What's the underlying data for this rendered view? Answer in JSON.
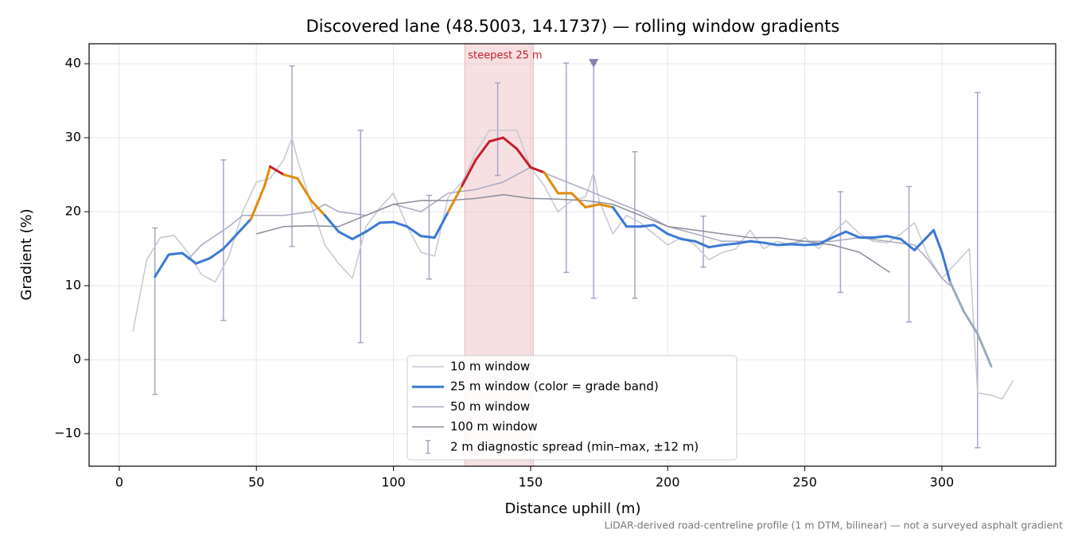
{
  "chart_data": {
    "type": "line",
    "title": "Discovered lane (48.5003, 14.1737) — rolling window gradients",
    "xlabel": "Distance uphill (m)",
    "ylabel": "Gradient (%)",
    "footnote": "LiDAR-derived road-centreline profile (1 m DTM, bilinear) — not a surveyed asphalt gradient",
    "xlim": [
      -11,
      341.5
    ],
    "ylim": [
      -14.4,
      42.7
    ],
    "xticks": [
      0,
      50,
      100,
      150,
      200,
      250,
      300
    ],
    "yticks": [
      {
        "value": -10,
        "label": "−10"
      },
      0,
      10,
      20,
      30,
      40
    ],
    "grid": true,
    "legend": "lower center",
    "highlight": {
      "x": [
        126,
        151
      ],
      "label": "steepest 25 m",
      "color": "#e8a5ad"
    },
    "marker": {
      "x": 173,
      "y": 40,
      "color": "#8a7fb0"
    },
    "series": [
      {
        "name": "10 m window",
        "color": "#c4c8d0",
        "width": 1.5,
        "x": [
          5,
          10,
          15,
          20,
          25,
          30,
          35,
          40,
          45,
          50,
          55,
          60,
          63,
          65,
          70,
          75,
          80,
          85,
          90,
          95,
          100,
          105,
          110,
          115,
          120,
          125,
          130,
          135,
          140,
          145,
          150,
          155,
          160,
          165,
          170,
          173,
          175,
          180,
          185,
          190,
          195,
          200,
          205,
          210,
          215,
          220,
          225,
          230,
          235,
          240,
          245,
          250,
          255,
          260,
          265,
          270,
          275,
          280,
          285,
          290,
          295,
          300,
          305,
          310,
          313,
          318,
          322,
          326
        ],
        "values": [
          3.8,
          13.5,
          16.5,
          16.8,
          14.5,
          11.5,
          10.5,
          14,
          20,
          24,
          24.5,
          27,
          30,
          27,
          21,
          15.5,
          13,
          11,
          18,
          20.5,
          22.5,
          18,
          14.5,
          14,
          22,
          24,
          28,
          31,
          31,
          31,
          26,
          23.5,
          20,
          21.5,
          22,
          25.3,
          21.5,
          17,
          19.5,
          18.5,
          17,
          15.5,
          16.5,
          15.5,
          13.5,
          14.5,
          15,
          17.5,
          15,
          16,
          15.5,
          16.5,
          15,
          17,
          18.8,
          17,
          16,
          15.8,
          17,
          18.5,
          14,
          11,
          13,
          15,
          -4.5,
          -4.8,
          -5.3,
          -2.8
        ]
      },
      {
        "name": "25 m window (color = grade band)",
        "color": "#3a78d4",
        "width": 3,
        "grade_bands": [
          {
            "min": 20,
            "color": "#e08b0b"
          },
          {
            "min": 25,
            "color": "#c41e2d"
          }
        ],
        "faded_from_x": 303,
        "faded_color": "#9aabbf",
        "x": [
          13,
          18,
          23,
          28,
          33,
          38,
          43,
          48,
          53,
          55,
          60,
          65,
          70,
          75,
          80,
          85,
          90,
          95,
          100,
          105,
          110,
          115,
          120,
          125,
          130,
          135,
          140,
          145,
          150,
          155,
          160,
          165,
          170,
          175,
          180,
          185,
          190,
          195,
          200,
          205,
          210,
          215,
          220,
          225,
          230,
          235,
          240,
          245,
          250,
          255,
          260,
          265,
          270,
          275,
          280,
          285,
          290,
          297,
          300,
          303,
          308,
          313,
          318
        ],
        "values": [
          11.2,
          14.2,
          14.4,
          13,
          13.7,
          15,
          17,
          19,
          23.5,
          26.1,
          25,
          24.5,
          21.5,
          19.5,
          17.3,
          16.3,
          17.3,
          18.5,
          18.6,
          18,
          16.7,
          16.5,
          20,
          23.5,
          27,
          29.5,
          30,
          28.5,
          26,
          25.3,
          22.5,
          22.5,
          20.6,
          21,
          20.6,
          18,
          18,
          18.2,
          17,
          16.3,
          16,
          15.2,
          15.5,
          15.7,
          16,
          15.8,
          15.5,
          15.6,
          15.5,
          15.6,
          16.5,
          17.3,
          16.5,
          16.5,
          16.7,
          16.3,
          14.8,
          17.5,
          14.5,
          10.5,
          6.5,
          3.5,
          -0.9
        ]
      },
      {
        "name": "50 m window",
        "color": "#a9a7bf",
        "width": 1.5,
        "x": [
          25,
          30,
          40,
          45,
          50,
          60,
          70,
          75,
          80,
          90,
          100,
          110,
          120,
          130,
          140,
          150,
          160,
          170,
          180,
          190,
          200,
          210,
          220,
          230,
          240,
          250,
          260,
          270,
          280,
          290,
          295,
          300,
          303
        ],
        "values": [
          13.5,
          15.5,
          18,
          19.5,
          19.5,
          19.5,
          20,
          21,
          20,
          19.5,
          21,
          20,
          22.5,
          23,
          24,
          26,
          24.5,
          23,
          21.5,
          20,
          18,
          17,
          16,
          16,
          15.5,
          16,
          16,
          16.5,
          16,
          15.5,
          13.5,
          11,
          10
        ]
      },
      {
        "name": "100 m window",
        "color": "#878c99",
        "width": 1.5,
        "x": [
          50,
          60,
          70,
          80,
          90,
          100,
          110,
          120,
          130,
          140,
          150,
          160,
          170,
          180,
          190,
          200,
          210,
          220,
          230,
          240,
          250,
          260,
          270,
          281
        ],
        "values": [
          17,
          18,
          18.1,
          18,
          19.5,
          21,
          21.5,
          21.5,
          21.8,
          22.3,
          21.8,
          21.7,
          21.5,
          21,
          19.5,
          18,
          17.5,
          17,
          16.5,
          16.5,
          16,
          15.5,
          14.5,
          11.8
        ]
      }
    ],
    "spread": {
      "name": "2 m diagnostic spread (min–max, ±12 m)",
      "color": "#a8a3c7",
      "x": [
        13,
        38,
        63,
        88,
        113,
        138,
        163,
        173,
        188,
        213,
        263,
        288,
        313
      ],
      "low": [
        -4.7,
        5.3,
        15.3,
        2.3,
        10.9,
        24.9,
        11.8,
        8.3,
        8.3,
        12.5,
        9.1,
        5.1,
        -11.9
      ],
      "high": [
        17.8,
        27,
        39.7,
        31,
        22.2,
        37.4,
        40.1,
        40,
        28.1,
        19.4,
        22.7,
        23.4,
        36.1
      ]
    }
  }
}
